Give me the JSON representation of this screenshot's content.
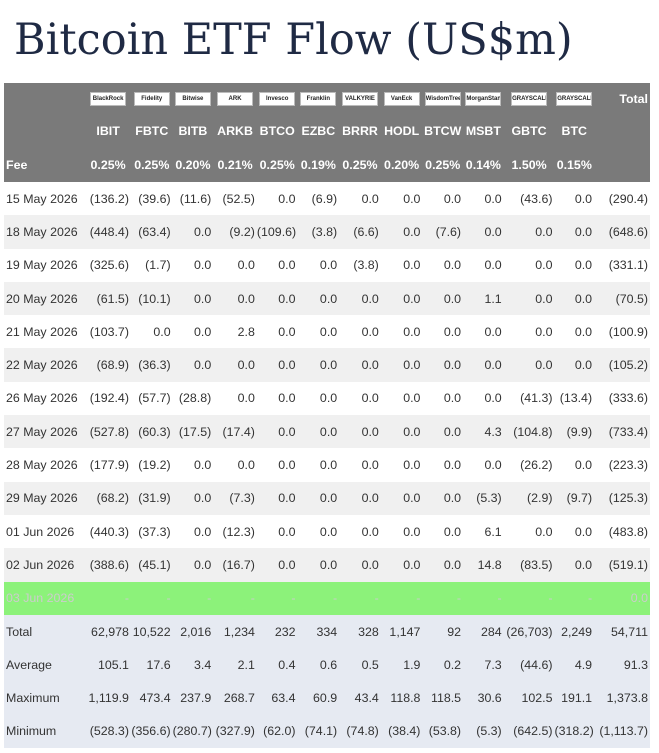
{
  "title": "Bitcoin ETF Flow (US$m)",
  "header": {
    "logos": [
      "BlackRock",
      "Fidelity",
      "Bitwise",
      "ARK",
      "Invesco",
      "Franklin",
      "VALKYRIE",
      "VanEck",
      "WisdomTree",
      "MorganStanley",
      "GRAYSCALE",
      "GRAYSCALE"
    ],
    "total_label": "Total",
    "tickers": [
      "IBIT",
      "FBTC",
      "BITB",
      "ARKB",
      "BTCO",
      "EZBC",
      "BRRR",
      "HODL",
      "BTCW",
      "MSBT",
      "GBTC",
      "BTC"
    ],
    "fee_label": "Fee",
    "fees": [
      "0.25%",
      "0.25%",
      "0.20%",
      "0.21%",
      "0.25%",
      "0.19%",
      "0.25%",
      "0.20%",
      "0.25%",
      "0.14%",
      "1.50%",
      "0.15%"
    ]
  },
  "rows": [
    {
      "date": "15 May 2026",
      "cells": [
        "(136.2)",
        "(39.6)",
        "(11.6)",
        "(52.5)",
        "0.0",
        "(6.9)",
        "0.0",
        "0.0",
        "0.0",
        "0.0",
        "(43.6)",
        "0.0",
        "(290.4)"
      ]
    },
    {
      "date": "18 May 2026",
      "cells": [
        "(448.4)",
        "(63.4)",
        "0.0",
        "(9.2)",
        "(109.6)",
        "(3.8)",
        "(6.6)",
        "0.0",
        "(7.6)",
        "0.0",
        "0.0",
        "0.0",
        "(648.6)"
      ]
    },
    {
      "date": "19 May 2026",
      "cells": [
        "(325.6)",
        "(1.7)",
        "0.0",
        "0.0",
        "0.0",
        "0.0",
        "(3.8)",
        "0.0",
        "0.0",
        "0.0",
        "0.0",
        "0.0",
        "(331.1)"
      ]
    },
    {
      "date": "20 May 2026",
      "cells": [
        "(61.5)",
        "(10.1)",
        "0.0",
        "0.0",
        "0.0",
        "0.0",
        "0.0",
        "0.0",
        "0.0",
        "1.1",
        "0.0",
        "0.0",
        "(70.5)"
      ]
    },
    {
      "date": "21 May 2026",
      "cells": [
        "(103.7)",
        "0.0",
        "0.0",
        "2.8",
        "0.0",
        "0.0",
        "0.0",
        "0.0",
        "0.0",
        "0.0",
        "0.0",
        "0.0",
        "(100.9)"
      ]
    },
    {
      "date": "22 May 2026",
      "cells": [
        "(68.9)",
        "(36.3)",
        "0.0",
        "0.0",
        "0.0",
        "0.0",
        "0.0",
        "0.0",
        "0.0",
        "0.0",
        "0.0",
        "0.0",
        "(105.2)"
      ]
    },
    {
      "date": "26 May 2026",
      "cells": [
        "(192.4)",
        "(57.7)",
        "(28.8)",
        "0.0",
        "0.0",
        "0.0",
        "0.0",
        "0.0",
        "0.0",
        "0.0",
        "(41.3)",
        "(13.4)",
        "(333.6)"
      ]
    },
    {
      "date": "27 May 2026",
      "cells": [
        "(527.8)",
        "(60.3)",
        "(17.5)",
        "(17.4)",
        "0.0",
        "0.0",
        "0.0",
        "0.0",
        "0.0",
        "4.3",
        "(104.8)",
        "(9.9)",
        "(733.4)"
      ]
    },
    {
      "date": "28 May 2026",
      "cells": [
        "(177.9)",
        "(19.2)",
        "0.0",
        "0.0",
        "0.0",
        "0.0",
        "0.0",
        "0.0",
        "0.0",
        "0.0",
        "(26.2)",
        "0.0",
        "(223.3)"
      ]
    },
    {
      "date": "29 May 2026",
      "cells": [
        "(68.2)",
        "(31.9)",
        "0.0",
        "(7.3)",
        "0.0",
        "0.0",
        "0.0",
        "0.0",
        "0.0",
        "(5.3)",
        "(2.9)",
        "(9.7)",
        "(125.3)"
      ]
    },
    {
      "date": "01 Jun 2026",
      "cells": [
        "(440.3)",
        "(37.3)",
        "0.0",
        "(12.3)",
        "0.0",
        "0.0",
        "0.0",
        "0.0",
        "0.0",
        "6.1",
        "0.0",
        "0.0",
        "(483.8)"
      ]
    },
    {
      "date": "02 Jun 2026",
      "cells": [
        "(388.6)",
        "(45.1)",
        "0.0",
        "(16.7)",
        "0.0",
        "0.0",
        "0.0",
        "0.0",
        "0.0",
        "14.8",
        "(83.5)",
        "0.0",
        "(519.1)"
      ]
    },
    {
      "date": "03 Jun 2026",
      "cells": [
        "-",
        "-",
        "-",
        "-",
        "-",
        "-",
        "-",
        "-",
        "-",
        "-",
        "-",
        "-",
        "0.0"
      ],
      "highlight": true
    }
  ],
  "summary": [
    {
      "label": "Total",
      "cells": [
        "62,978",
        "10,522",
        "2,016",
        "1,234",
        "232",
        "334",
        "328",
        "1,147",
        "92",
        "284",
        "(26,703)",
        "2,249",
        "54,711"
      ]
    },
    {
      "label": "Average",
      "cells": [
        "105.1",
        "17.6",
        "3.4",
        "2.1",
        "0.4",
        "0.6",
        "0.5",
        "1.9",
        "0.2",
        "7.3",
        "(44.6)",
        "4.9",
        "91.3"
      ]
    },
    {
      "label": "Maximum",
      "cells": [
        "1,119.9",
        "473.4",
        "237.9",
        "268.7",
        "63.4",
        "60.9",
        "43.4",
        "118.8",
        "118.5",
        "30.6",
        "102.5",
        "191.1",
        "1,373.8"
      ]
    },
    {
      "label": "Minimum",
      "cells": [
        "(528.3)",
        "(356.6)",
        "(280.7)",
        "(327.9)",
        "(62.0)",
        "(74.1)",
        "(74.8)",
        "(38.4)",
        "(53.8)",
        "(5.3)",
        "(642.5)",
        "(318.2)",
        "(1,113.7)"
      ]
    }
  ]
}
